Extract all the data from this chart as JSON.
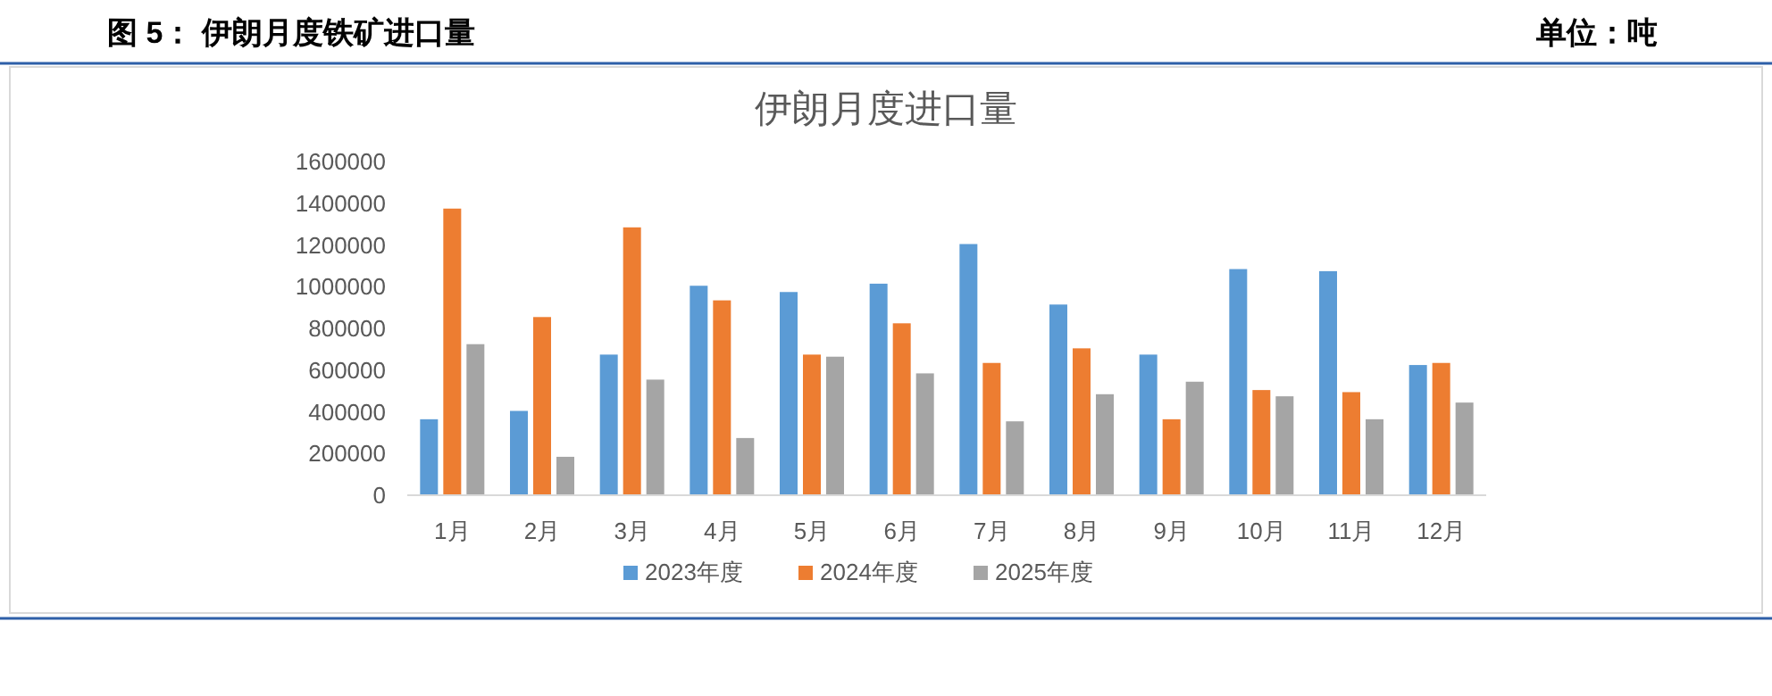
{
  "chart_data": {
    "type": "bar",
    "title": "伊朗月度进口量",
    "annotations": [
      "图 5：   伊朗月度铁矿进口量",
      "单位：吨"
    ],
    "categories": [
      "1月",
      "2月",
      "3月",
      "4月",
      "5月",
      "6月",
      "7月",
      "8月",
      "9月",
      "10月",
      "11月",
      "12月"
    ],
    "series": [
      {
        "name": "2023年度",
        "color": "#5b9bd5",
        "values": [
          360000,
          400000,
          670000,
          1000000,
          970000,
          1010000,
          1200000,
          910000,
          670000,
          1080000,
          1070000,
          620000
        ]
      },
      {
        "name": "2024年度",
        "color": "#ed7d31",
        "values": [
          1370000,
          850000,
          1280000,
          930000,
          670000,
          820000,
          630000,
          700000,
          360000,
          500000,
          490000,
          630000
        ]
      },
      {
        "name": "2025年度",
        "color": "#a5a5a5",
        "values": [
          720000,
          180000,
          550000,
          270000,
          660000,
          580000,
          350000,
          480000,
          540000,
          470000,
          360000,
          440000
        ]
      }
    ],
    "ylim": [
      0,
      1600000
    ],
    "yticks": [
      0,
      200000,
      400000,
      600000,
      800000,
      1000000,
      1200000,
      1400000,
      1600000
    ],
    "legend": "bottom"
  }
}
